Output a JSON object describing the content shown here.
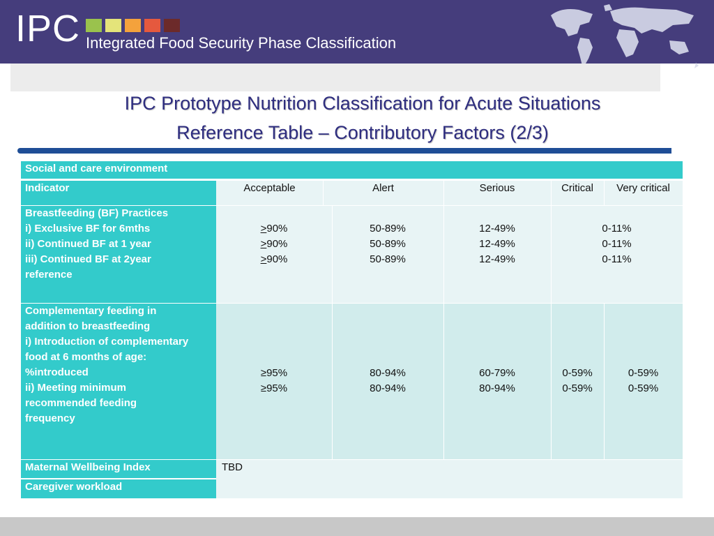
{
  "header": {
    "logo": "IPC",
    "subtitle": "Integrated Food Security Phase Classification",
    "squares": [
      "#9ac24d",
      "#e4e47a",
      "#f4a23c",
      "#e5593e",
      "#6c2a2a"
    ]
  },
  "title": {
    "line1": "IPC Prototype Nutrition Classification for Acute Situations",
    "line2": "Reference Table –  Contributory Factors (2/3)"
  },
  "table": {
    "section": "Social and care environment",
    "headers": {
      "indicator": "Indicator",
      "acceptable": "Acceptable",
      "alert": "Alert",
      "serious": "Serious",
      "critical": "Critical",
      "very_critical": "Very critical"
    },
    "bf": {
      "label1": "Breastfeeding (BF) Practices",
      "label2": "i) Exclusive BF for 6mths",
      "label3": "ii) Continued BF  at 1 year",
      "label4": "iii) Continued BF at 2year",
      "label5": "reference",
      "acceptable_sym": ">",
      "acceptable_val": "90%",
      "alert": "50-89%",
      "serious": "12-49%",
      "critical": "0-11%"
    },
    "cf": {
      "label1": "Complementary feeding in",
      "label2": "addition to breastfeeding",
      "label3": "i) Introduction of complementary",
      "label4": "food at 6 months of age:",
      "label5": "%introduced",
      "label6": "ii) Meeting minimum",
      "label7": "recommended feeding",
      "label8": "frequency",
      "acceptable": "≥95%",
      "alert": "80-94%",
      "serious1": "60-79%",
      "serious2": "80-94%",
      "critical": "0-59%",
      "very_critical": "0-59%"
    },
    "maternal": {
      "label": "Maternal Wellbeing Index",
      "value": "TBD"
    },
    "caregiver": {
      "label": "Caregiver workload"
    }
  }
}
